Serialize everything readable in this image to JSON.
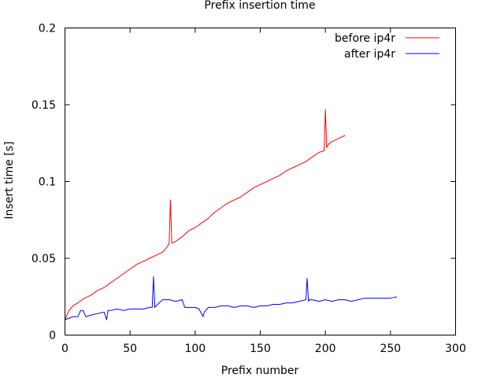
{
  "chart_data": {
    "type": "line",
    "title": "Prefix insertion time",
    "xlabel": "Prefix number",
    "ylabel": "Insert time [s]",
    "xlim": [
      0,
      300
    ],
    "ylim": [
      0,
      0.2
    ],
    "xticks": [
      0,
      50,
      100,
      150,
      200,
      250,
      300
    ],
    "yticks": [
      0,
      0.05,
      0.1,
      0.15,
      0.2
    ],
    "xtick_labels": [
      "0",
      "50",
      "100",
      "150",
      "200",
      "250",
      "300"
    ],
    "ytick_labels": [
      "0",
      "0.05",
      "0.1",
      "0.15",
      "0.2"
    ],
    "grid": false,
    "legend_position": "top-right",
    "series": [
      {
        "name": "before ip4r",
        "color": "#ff0000",
        "x": [
          0,
          3,
          6,
          10,
          15,
          20,
          25,
          30,
          35,
          40,
          45,
          50,
          55,
          60,
          65,
          70,
          75,
          79,
          80,
          81,
          82,
          83,
          85,
          90,
          95,
          100,
          105,
          110,
          115,
          120,
          125,
          130,
          135,
          140,
          145,
          150,
          155,
          160,
          165,
          170,
          175,
          180,
          185,
          190,
          195,
          199,
          200,
          201,
          202,
          205,
          210,
          215
        ],
        "y": [
          0.01,
          0.016,
          0.019,
          0.021,
          0.024,
          0.026,
          0.029,
          0.031,
          0.034,
          0.037,
          0.04,
          0.043,
          0.046,
          0.048,
          0.05,
          0.052,
          0.054,
          0.058,
          0.06,
          0.088,
          0.06,
          0.06,
          0.061,
          0.064,
          0.068,
          0.07,
          0.073,
          0.076,
          0.08,
          0.083,
          0.086,
          0.088,
          0.09,
          0.093,
          0.096,
          0.098,
          0.1,
          0.102,
          0.104,
          0.107,
          0.109,
          0.111,
          0.113,
          0.116,
          0.119,
          0.12,
          0.147,
          0.122,
          0.124,
          0.126,
          0.128,
          0.13
        ]
      },
      {
        "name": "after ip4r",
        "color": "#0000ff",
        "x": [
          0,
          3,
          6,
          10,
          12,
          14,
          16,
          20,
          25,
          30,
          32,
          33,
          35,
          40,
          45,
          50,
          55,
          60,
          65,
          67,
          68,
          69,
          70,
          75,
          80,
          85,
          90,
          92,
          95,
          100,
          103,
          106,
          107,
          110,
          115,
          120,
          125,
          130,
          135,
          140,
          145,
          150,
          155,
          160,
          165,
          170,
          175,
          180,
          185,
          186,
          187,
          188,
          190,
          195,
          200,
          205,
          210,
          215,
          220,
          225,
          230,
          235,
          240,
          245,
          250,
          255
        ],
        "y": [
          0.01,
          0.011,
          0.012,
          0.012,
          0.016,
          0.016,
          0.012,
          0.013,
          0.014,
          0.015,
          0.01,
          0.016,
          0.016,
          0.017,
          0.016,
          0.017,
          0.017,
          0.017,
          0.018,
          0.018,
          0.038,
          0.018,
          0.019,
          0.023,
          0.023,
          0.022,
          0.023,
          0.018,
          0.018,
          0.018,
          0.017,
          0.012,
          0.015,
          0.018,
          0.018,
          0.019,
          0.019,
          0.018,
          0.019,
          0.019,
          0.018,
          0.019,
          0.019,
          0.02,
          0.02,
          0.021,
          0.021,
          0.022,
          0.023,
          0.037,
          0.022,
          0.023,
          0.023,
          0.022,
          0.023,
          0.022,
          0.023,
          0.023,
          0.022,
          0.023,
          0.024,
          0.024,
          0.024,
          0.024,
          0.024,
          0.025
        ]
      }
    ]
  }
}
